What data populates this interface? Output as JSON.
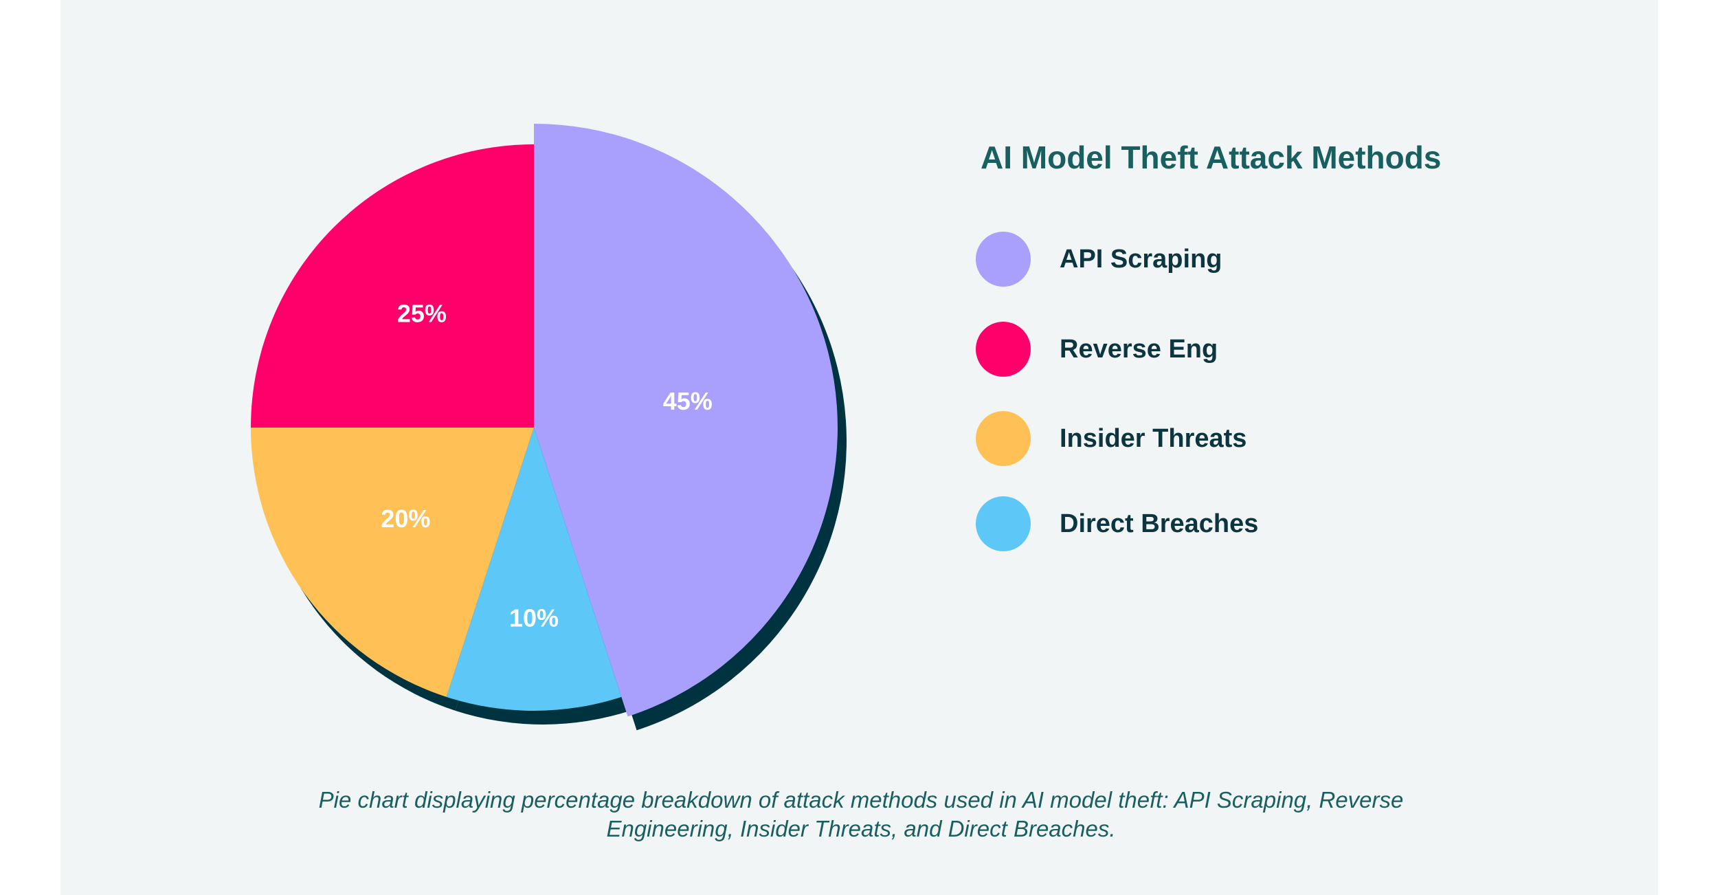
{
  "chart_data": {
    "type": "pie",
    "title": "AI Model Theft Attack Methods",
    "slices": [
      {
        "label": "API Scraping",
        "value": 45,
        "display": "45%",
        "color": "#a99ffc",
        "exploded": true
      },
      {
        "label": "Direct Breaches",
        "value": 10,
        "display": "10%",
        "color": "#5dc8f8"
      },
      {
        "label": "Insider Threats",
        "value": 20,
        "display": "20%",
        "color": "#ffc155"
      },
      {
        "label": "Reverse Eng",
        "value": 25,
        "display": "25%",
        "color": "#ff006b"
      }
    ],
    "legend_order": [
      0,
      3,
      2,
      1
    ],
    "legend_placement": "right",
    "shadow_color": "#003340",
    "caption": "Pie chart displaying percentage breakdown of attack methods used in AI model theft: API Scraping, Reverse Engineering, Insider Threats, and Direct Breaches."
  }
}
